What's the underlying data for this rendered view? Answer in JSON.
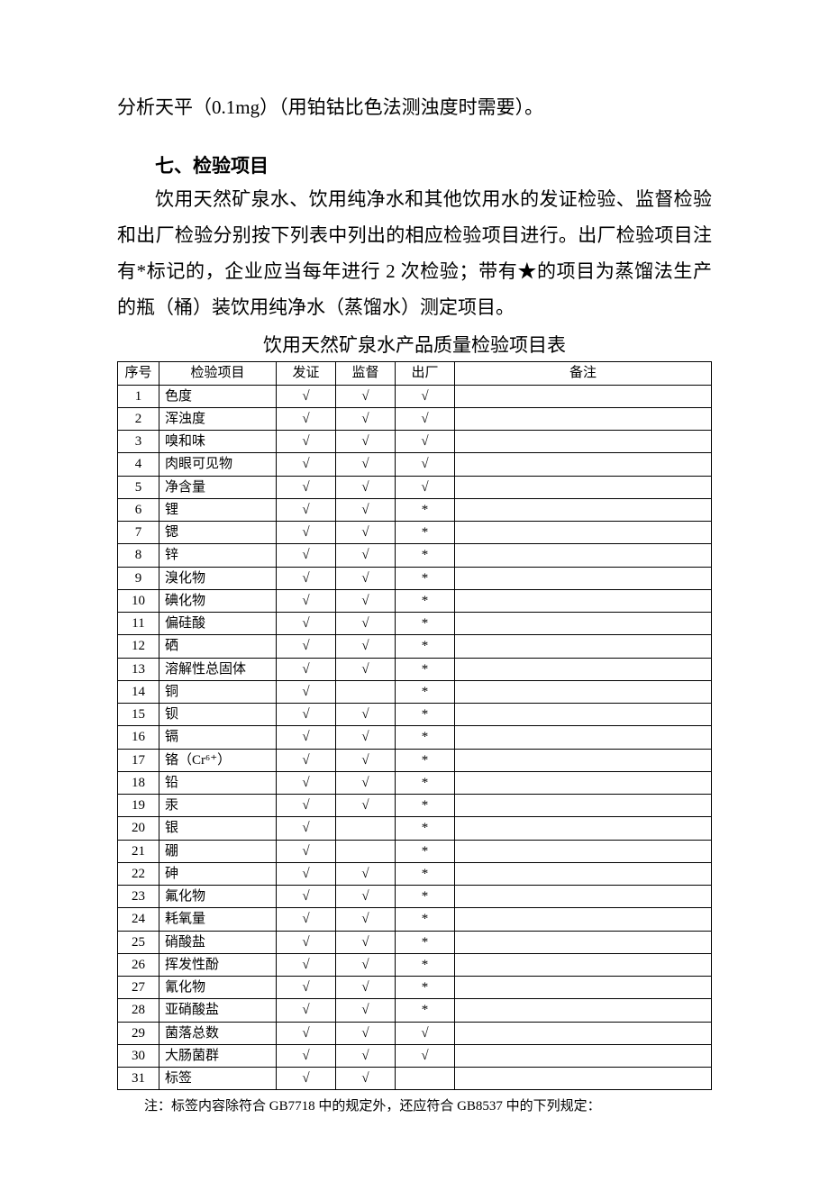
{
  "intro_line": "分析天平（0.1mg）（用铂钴比色法测浊度时需要）。",
  "section_heading": "七、检验项目",
  "paragraph": "饮用天然矿泉水、饮用纯净水和其他饮用水的发证检验、监督检验和出厂检验分别按下列表中列出的相应检验项目进行。出厂检验项目注有*标记的，企业应当每年进行 2 次检验；带有★的项目为蒸馏法生产的瓶（桶）装饮用纯净水（蒸馏水）测定项目。",
  "table_caption": "饮用天然矿泉水产品质量检验项目表",
  "check_mark": "√",
  "asterisk_mark": "*",
  "columns": {
    "c0": "序号",
    "c1": "检验项目",
    "c2": "发证",
    "c3": "监督",
    "c4": "出厂",
    "c5": "备注"
  },
  "rows": [
    {
      "n": "1",
      "item": "色度",
      "fz": "√",
      "jd": "√",
      "cc": "√",
      "bz": ""
    },
    {
      "n": "2",
      "item": "浑浊度",
      "fz": "√",
      "jd": "√",
      "cc": "√",
      "bz": ""
    },
    {
      "n": "3",
      "item": "嗅和味",
      "fz": "√",
      "jd": "√",
      "cc": "√",
      "bz": ""
    },
    {
      "n": "4",
      "item": "肉眼可见物",
      "fz": "√",
      "jd": "√",
      "cc": "√",
      "bz": ""
    },
    {
      "n": "5",
      "item": "净含量",
      "fz": "√",
      "jd": "√",
      "cc": "√",
      "bz": ""
    },
    {
      "n": "6",
      "item": "锂",
      "fz": "√",
      "jd": "√",
      "cc": "*",
      "bz": ""
    },
    {
      "n": "7",
      "item": "锶",
      "fz": "√",
      "jd": "√",
      "cc": "*",
      "bz": ""
    },
    {
      "n": "8",
      "item": "锌",
      "fz": "√",
      "jd": "√",
      "cc": "*",
      "bz": ""
    },
    {
      "n": "9",
      "item": "溴化物",
      "fz": "√",
      "jd": "√",
      "cc": "*",
      "bz": ""
    },
    {
      "n": "10",
      "item": "碘化物",
      "fz": "√",
      "jd": "√",
      "cc": "*",
      "bz": ""
    },
    {
      "n": "11",
      "item": "偏硅酸",
      "fz": "√",
      "jd": "√",
      "cc": "*",
      "bz": ""
    },
    {
      "n": "12",
      "item": "硒",
      "fz": "√",
      "jd": "√",
      "cc": "*",
      "bz": ""
    },
    {
      "n": "13",
      "item": "溶解性总固体",
      "fz": "√",
      "jd": "√",
      "cc": "*",
      "bz": ""
    },
    {
      "n": "14",
      "item": "铜",
      "fz": "√",
      "jd": "",
      "cc": "*",
      "bz": ""
    },
    {
      "n": "15",
      "item": "钡",
      "fz": "√",
      "jd": "√",
      "cc": "*",
      "bz": ""
    },
    {
      "n": "16",
      "item": "镉",
      "fz": "√",
      "jd": "√",
      "cc": "*",
      "bz": ""
    },
    {
      "n": "17",
      "item": "铬（Cr⁶⁺）",
      "fz": "√",
      "jd": "√",
      "cc": "*",
      "bz": ""
    },
    {
      "n": "18",
      "item": "铅",
      "fz": "√",
      "jd": "√",
      "cc": "*",
      "bz": ""
    },
    {
      "n": "19",
      "item": "汞",
      "fz": "√",
      "jd": "√",
      "cc": "*",
      "bz": ""
    },
    {
      "n": "20",
      "item": "银",
      "fz": "√",
      "jd": "",
      "cc": "*",
      "bz": ""
    },
    {
      "n": "21",
      "item": "硼",
      "fz": "√",
      "jd": "",
      "cc": "*",
      "bz": ""
    },
    {
      "n": "22",
      "item": "砷",
      "fz": "√",
      "jd": "√",
      "cc": "*",
      "bz": ""
    },
    {
      "n": "23",
      "item": "氟化物",
      "fz": "√",
      "jd": "√",
      "cc": "*",
      "bz": ""
    },
    {
      "n": "24",
      "item": "耗氧量",
      "fz": "√",
      "jd": "√",
      "cc": "*",
      "bz": ""
    },
    {
      "n": "25",
      "item": "硝酸盐",
      "fz": "√",
      "jd": "√",
      "cc": "*",
      "bz": ""
    },
    {
      "n": "26",
      "item": "挥发性酚",
      "fz": "√",
      "jd": "√",
      "cc": "*",
      "bz": ""
    },
    {
      "n": "27",
      "item": "氰化物",
      "fz": "√",
      "jd": "√",
      "cc": "*",
      "bz": ""
    },
    {
      "n": "28",
      "item": "亚硝酸盐",
      "fz": "√",
      "jd": "√",
      "cc": "*",
      "bz": ""
    },
    {
      "n": "29",
      "item": "菌落总数",
      "fz": "√",
      "jd": "√",
      "cc": "√",
      "bz": ""
    },
    {
      "n": "30",
      "item": "大肠菌群",
      "fz": "√",
      "jd": "√",
      "cc": "√",
      "bz": ""
    },
    {
      "n": "31",
      "item": "标签",
      "fz": "√",
      "jd": "√",
      "cc": "",
      "bz": ""
    }
  ],
  "footnote": "注：标签内容除符合 GB7718 中的规定外，还应符合 GB8537 中的下列规定："
}
